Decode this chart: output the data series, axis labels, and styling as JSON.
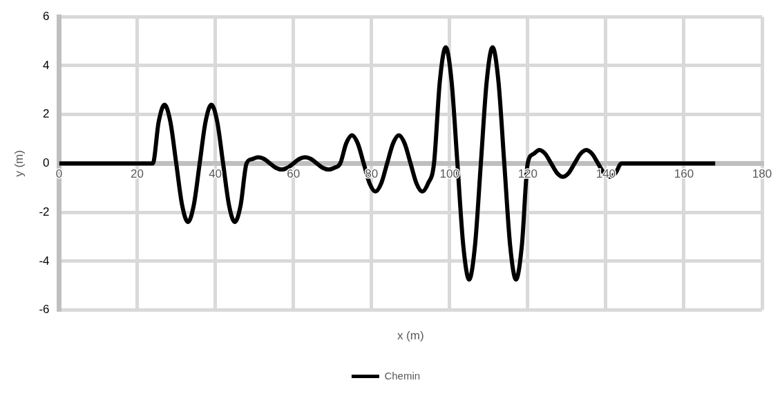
{
  "chart_data": {
    "type": "line",
    "xlabel": "x (m)",
    "ylabel": "y (m)",
    "legend": "bottom",
    "grid": true,
    "marker": "none",
    "line_style": "solid",
    "xlim": [
      0,
      180
    ],
    "xticks": [
      0,
      20,
      40,
      60,
      80,
      100,
      120,
      140,
      160,
      180
    ],
    "ylim": [
      -6,
      6
    ],
    "yticks": [
      -6,
      -4,
      -2,
      0,
      2,
      4,
      6
    ],
    "x": [
      0,
      24,
      25.5,
      27,
      28.5,
      30,
      31.5,
      33,
      34.5,
      36,
      37.5,
      39,
      40.5,
      42,
      43.5,
      45,
      46.5,
      48,
      49.5,
      51,
      52.5,
      54,
      55.5,
      57,
      58.5,
      60,
      61.5,
      63,
      64.5,
      66,
      67.5,
      69,
      70.5,
      72,
      73.5,
      75,
      76.5,
      78,
      79.5,
      81,
      82.5,
      84,
      85.5,
      87,
      88.5,
      90,
      91.5,
      93,
      94.5,
      96,
      97.5,
      99,
      100.5,
      102,
      103.5,
      105,
      106.5,
      108,
      109.5,
      111,
      112.5,
      114,
      115.5,
      117,
      118.5,
      120,
      121.5,
      123,
      124.5,
      126,
      127.5,
      129,
      130.5,
      132,
      133.5,
      135,
      136.5,
      138,
      139.5,
      141,
      142.5,
      144,
      168
    ],
    "series": [
      {
        "name": "Chemin",
        "color": "#000000",
        "values": [
          0,
          0,
          1.7,
          2.4,
          1.7,
          0,
          -1.7,
          -2.4,
          -1.7,
          0,
          1.7,
          2.4,
          1.7,
          0,
          -1.7,
          -2.4,
          -1.7,
          0,
          0.18,
          0.25,
          0.18,
          0,
          -0.18,
          -0.25,
          -0.18,
          0,
          0.18,
          0.25,
          0.18,
          0,
          -0.18,
          -0.25,
          -0.18,
          0,
          0.81,
          1.15,
          0.81,
          0,
          -0.81,
          -1.15,
          -0.81,
          0,
          0.81,
          1.15,
          0.81,
          0,
          -0.81,
          -1.15,
          -0.81,
          0,
          3.36,
          4.75,
          3.36,
          0,
          -3.36,
          -4.75,
          -3.36,
          0,
          3.36,
          4.75,
          3.36,
          0,
          -3.36,
          -4.75,
          -3.36,
          0,
          0.39,
          0.55,
          0.39,
          0,
          -0.39,
          -0.55,
          -0.39,
          0,
          0.39,
          0.55,
          0.39,
          0,
          -0.39,
          -0.55,
          -0.39,
          0,
          0
        ]
      }
    ]
  }
}
